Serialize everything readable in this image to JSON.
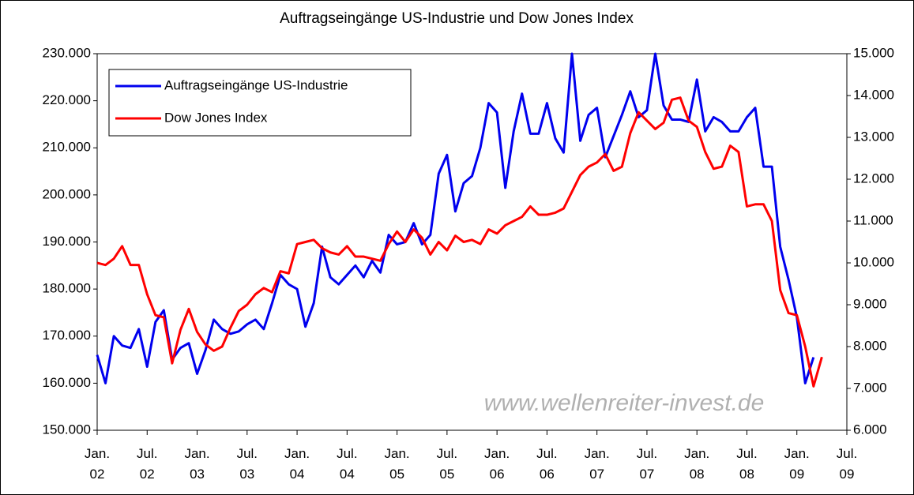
{
  "chart_data": {
    "type": "line",
    "title": "Auftragseingänge US-Industrie und Dow Jones Index",
    "annotation": "www.wellenreiter-invest.de",
    "legend": "upper left",
    "categories": [
      "Jan. 02",
      null,
      null,
      null,
      null,
      null,
      "Jul. 02",
      null,
      null,
      null,
      null,
      null,
      "Jan. 03",
      null,
      null,
      null,
      null,
      null,
      "Jul. 03",
      null,
      null,
      null,
      null,
      null,
      "Jan. 04",
      null,
      null,
      null,
      null,
      null,
      "Jul. 04",
      null,
      null,
      null,
      null,
      null,
      "Jan. 05",
      null,
      null,
      null,
      null,
      null,
      "Jul. 05",
      null,
      null,
      null,
      null,
      null,
      "Jan. 06",
      null,
      null,
      null,
      null,
      null,
      "Jul. 06",
      null,
      null,
      null,
      null,
      null,
      "Jan. 07",
      null,
      null,
      null,
      null,
      null,
      "Jul. 07",
      null,
      null,
      null,
      null,
      null,
      "Jan. 08",
      null,
      null,
      null,
      null,
      null,
      "Jul. 08",
      null,
      null,
      null,
      null,
      null,
      "Jan. 09",
      null,
      null,
      null,
      null,
      null,
      "Jul. 09"
    ],
    "series": [
      {
        "name": "Auftragseingänge US-Industrie",
        "color": "#0000ee",
        "values": [
          166000,
          160000,
          170000,
          168000,
          167500,
          171500,
          163500,
          173000,
          175500,
          165000,
          167500,
          168500,
          162000,
          167000,
          173500,
          171500,
          170500,
          171000,
          172500,
          173500,
          171500,
          177000,
          183000,
          181000,
          180000,
          172000,
          177000,
          189000,
          182500,
          181000,
          183000,
          185000,
          182500,
          186000,
          183500,
          191500,
          189500,
          190000,
          194000,
          189500,
          191500,
          204500,
          208500,
          196500,
          202500,
          204000,
          210000,
          219500,
          217500,
          201500,
          213500,
          221500,
          213000,
          213000,
          219500,
          212000,
          209000,
          230000,
          211500,
          217000,
          218500,
          208000,
          212500,
          217000,
          222000,
          216500,
          218000,
          230000,
          219000,
          216000,
          216000,
          215500,
          224500,
          213500,
          216500,
          215500,
          213500,
          213500,
          216500,
          218500,
          206000,
          206000,
          189000,
          182000,
          174000,
          160000,
          165500,
          null,
          null,
          null,
          null
        ]
      },
      {
        "name": "Dow Jones Index",
        "color": "#ff0000",
        "axis": "y2",
        "values": [
          10000,
          9950,
          10100,
          10400,
          9950,
          9950,
          9250,
          8750,
          8700,
          7600,
          8400,
          8900,
          8350,
          8050,
          7900,
          8000,
          8450,
          8850,
          9000,
          9250,
          9400,
          9300,
          9800,
          9750,
          10450,
          10500,
          10550,
          10350,
          10250,
          10200,
          10400,
          10150,
          10150,
          10100,
          10050,
          10450,
          10750,
          10500,
          10800,
          10600,
          10200,
          10500,
          10300,
          10650,
          10500,
          10550,
          10450,
          10800,
          10700,
          10900,
          11000,
          11100,
          11350,
          11150,
          11150,
          11200,
          11300,
          11700,
          12100,
          12300,
          12400,
          12600,
          12200,
          12300,
          13100,
          13600,
          13400,
          13200,
          13350,
          13900,
          13950,
          13400,
          13250,
          12650,
          12250,
          12300,
          12800,
          12650,
          11350,
          11400,
          11400,
          11000,
          9350,
          8800,
          8750,
          8000,
          7050,
          7750,
          null,
          null,
          null
        ]
      }
    ],
    "ylim": [
      150000,
      230000
    ],
    "yticks": [
      {
        "value": 150000,
        "label": "150.000"
      },
      {
        "value": 160000,
        "label": "160.000"
      },
      {
        "value": 170000,
        "label": "170.000"
      },
      {
        "value": 180000,
        "label": "180.000"
      },
      {
        "value": 190000,
        "label": "190.000"
      },
      {
        "value": 200000,
        "label": "200.000"
      },
      {
        "value": 210000,
        "label": "210.000"
      },
      {
        "value": 220000,
        "label": "220.000"
      },
      {
        "value": 230000,
        "label": "230.000"
      }
    ],
    "y2lim": [
      6000,
      15000
    ],
    "y2ticks": [
      {
        "value": 6000,
        "label": "6.000"
      },
      {
        "value": 7000,
        "label": "7.000"
      },
      {
        "value": 8000,
        "label": "8.000"
      },
      {
        "value": 9000,
        "label": "9.000"
      },
      {
        "value": 10000,
        "label": "10.000"
      },
      {
        "value": 11000,
        "label": "11.000"
      },
      {
        "value": 12000,
        "label": "12.000"
      },
      {
        "value": 13000,
        "label": "13.000"
      },
      {
        "value": 14000,
        "label": "14.000"
      },
      {
        "value": 15000,
        "label": "15.000"
      }
    ]
  }
}
